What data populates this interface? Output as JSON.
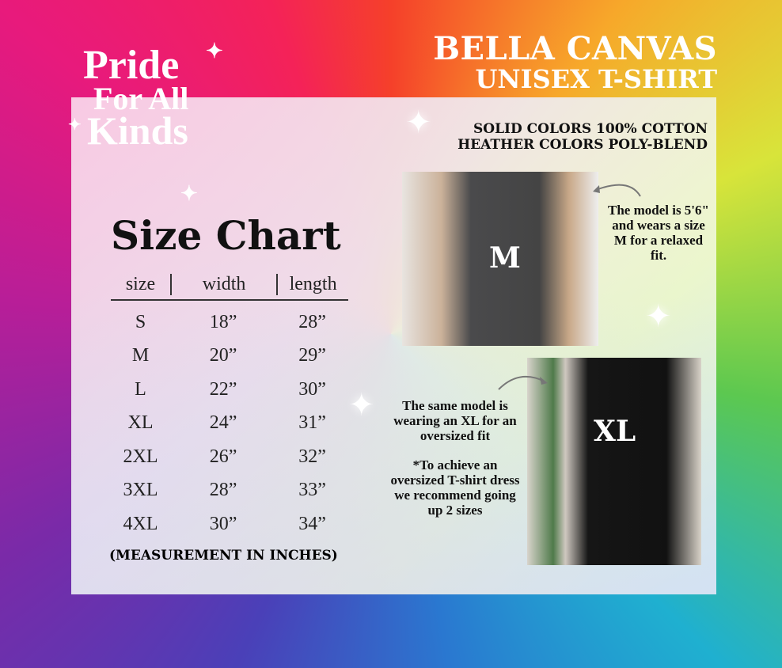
{
  "logo": {
    "line1": "Pride",
    "line2": "For All",
    "line3": "Kinds"
  },
  "brand": {
    "line1": "BELLA CANVAS",
    "line2": "UNISEX T-SHIRT"
  },
  "fabric": {
    "line1": "SOLID COLORS 100% COTTON",
    "line2": "HEATHER COLORS POLY-BLEND"
  },
  "title": "Size Chart",
  "table": {
    "headers": [
      "size",
      "width",
      "length"
    ],
    "rows": [
      [
        "S",
        "18”",
        "28”"
      ],
      [
        "M",
        "20”",
        "29”"
      ],
      [
        "L",
        "22”",
        "30”"
      ],
      [
        "XL",
        "24”",
        "31”"
      ],
      [
        "2XL",
        "26”",
        "32”"
      ],
      [
        "3XL",
        "28”",
        "33”"
      ],
      [
        "4XL",
        "30”",
        "34”"
      ]
    ]
  },
  "note": "(MEASUREMENT IN INCHES)",
  "photo_m": {
    "label": "M",
    "caption": "The model is 5'6\" and wears a size M for a relaxed fit."
  },
  "photo_xl": {
    "label": "XL",
    "caption1": "The same model is wearing an XL for an oversized fit",
    "caption2": "*To achieve an oversized T-shirt dress we recommend going up 2 sizes"
  }
}
